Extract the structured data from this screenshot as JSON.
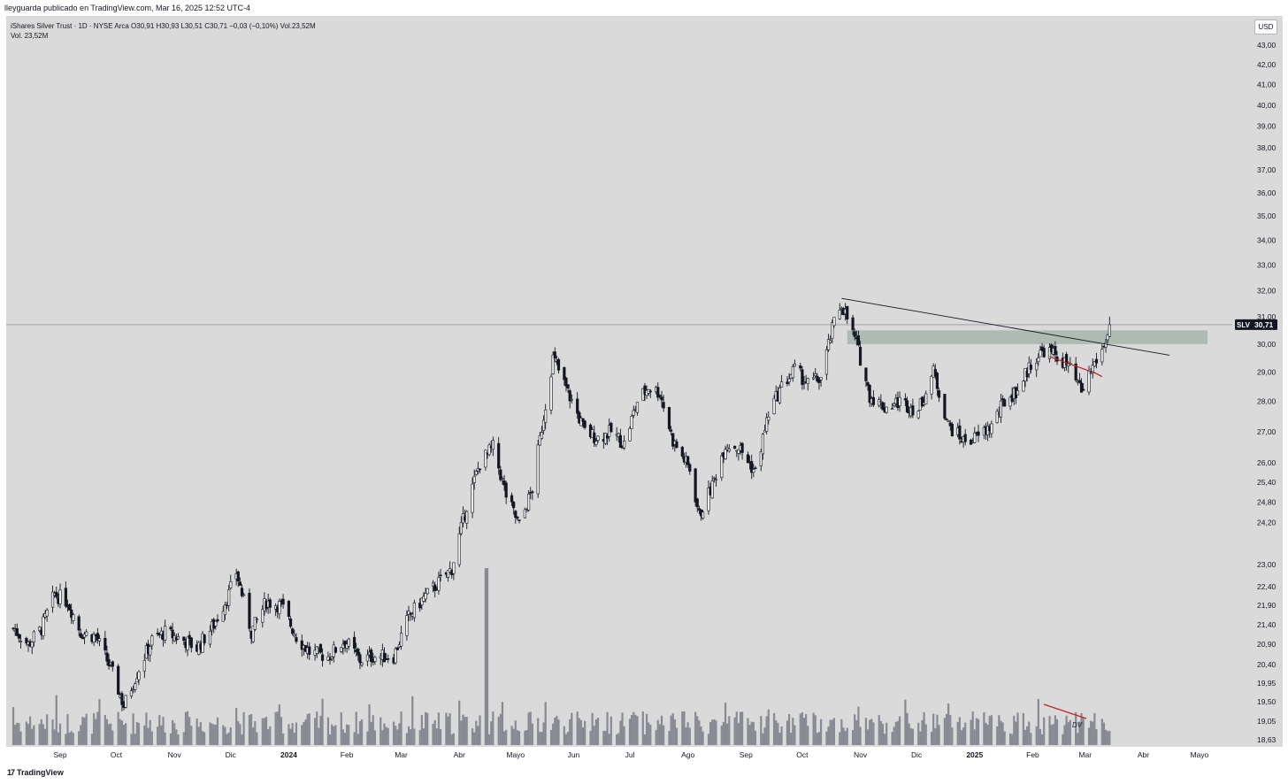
{
  "header": {
    "publisher_line": "lleyguarda publicado en TradingView.com, Mar 16, 2025 12:52 UTC-4"
  },
  "legend": {
    "symbol_line": "iShares Silver Trust · 1D · NYSE Arca  O30,91  H30,93  L30,51  C30,71  −0,03 (−0,10%)  Vol.23,52M",
    "volume_line": "Vol.  23,52M"
  },
  "currency_button": "USD",
  "footer": {
    "brand": "TradingView",
    "logo_glyph": "17"
  },
  "colors": {
    "background": "#dadada",
    "candle_up_fill": "#f0f0f0",
    "candle_down_fill": "#131722",
    "volume": "#878a93",
    "zone": "#a4b5ab",
    "trendline": "#131722",
    "red_marks": "#c2202b",
    "price_label_bg": "#131722"
  },
  "price_label": {
    "symbol": "SLV",
    "value": "30,71"
  },
  "chart_data": {
    "type": "candlestick",
    "title": "",
    "y_scale": "log",
    "ylim": [
      18.63,
      44.0
    ],
    "y_ticks": [
      "43,00",
      "42,00",
      "41,00",
      "40,00",
      "39,00",
      "38,00",
      "37,00",
      "36,00",
      "35,00",
      "34,00",
      "33,00",
      "32,00",
      "31,00",
      "30,00",
      "29,00",
      "28,00",
      "27,00",
      "26,00",
      "25,40",
      "24,80",
      "24,20",
      "23,00",
      "22,40",
      "21,90",
      "21,40",
      "20,90",
      "20,40",
      "19,95",
      "19,50",
      "19,05",
      "18,63"
    ],
    "x_ticks": [
      {
        "label": "Sep",
        "date": "2023-09-01"
      },
      {
        "label": "Oct",
        "date": "2023-10-01"
      },
      {
        "label": "Nov",
        "date": "2023-11-01"
      },
      {
        "label": "Dic",
        "date": "2023-12-01"
      },
      {
        "label": "2024",
        "date": "2024-01-01",
        "bold": true
      },
      {
        "label": "Feb",
        "date": "2024-02-01"
      },
      {
        "label": "Mar",
        "date": "2024-03-01"
      },
      {
        "label": "Abr",
        "date": "2024-04-01"
      },
      {
        "label": "Mayo",
        "date": "2024-05-01"
      },
      {
        "label": "Jun",
        "date": "2024-06-01"
      },
      {
        "label": "Jul",
        "date": "2024-07-01"
      },
      {
        "label": "Ago",
        "date": "2024-08-01"
      },
      {
        "label": "Sep",
        "date": "2024-09-01"
      },
      {
        "label": "Oct",
        "date": "2024-10-01"
      },
      {
        "label": "Nov",
        "date": "2024-11-01"
      },
      {
        "label": "Dic",
        "date": "2024-12-01"
      },
      {
        "label": "2025",
        "date": "2025-01-01",
        "bold": true
      },
      {
        "label": "Feb",
        "date": "2025-02-01"
      },
      {
        "label": "Mar",
        "date": "2025-03-01"
      },
      {
        "label": "Abr",
        "date": "2025-04-01"
      },
      {
        "label": "Mayo",
        "date": "2025-05-01"
      }
    ],
    "x_range": [
      "2023-08-07",
      "2025-05-28"
    ],
    "closes_anchor": [
      [
        "2023-08-07",
        21.3
      ],
      [
        "2023-08-15",
        20.9
      ],
      [
        "2023-08-22",
        21.3
      ],
      [
        "2023-08-29",
        22.2
      ],
      [
        "2023-09-05",
        22.0
      ],
      [
        "2023-09-12",
        21.2
      ],
      [
        "2023-09-20",
        21.1
      ],
      [
        "2023-09-28",
        20.3
      ],
      [
        "2023-10-05",
        19.4
      ],
      [
        "2023-10-13",
        20.3
      ],
      [
        "2023-10-20",
        21.0
      ],
      [
        "2023-10-27",
        21.2
      ],
      [
        "2023-11-06",
        21.0
      ],
      [
        "2023-11-13",
        20.8
      ],
      [
        "2023-11-22",
        21.4
      ],
      [
        "2023-11-30",
        22.2
      ],
      [
        "2023-12-04",
        22.8
      ],
      [
        "2023-12-12",
        21.2
      ],
      [
        "2023-12-20",
        22.0
      ],
      [
        "2023-12-28",
        21.9
      ],
      [
        "2024-01-05",
        21.1
      ],
      [
        "2024-01-12",
        20.7
      ],
      [
        "2024-01-22",
        20.6
      ],
      [
        "2024-01-31",
        21.0
      ],
      [
        "2024-02-08",
        20.5
      ],
      [
        "2024-02-15",
        20.6
      ],
      [
        "2024-02-26",
        20.6
      ],
      [
        "2024-03-05",
        21.6
      ],
      [
        "2024-03-13",
        22.1
      ],
      [
        "2024-03-21",
        22.5
      ],
      [
        "2024-03-28",
        22.9
      ],
      [
        "2024-04-05",
        24.7
      ],
      [
        "2024-04-12",
        26.0
      ],
      [
        "2024-04-19",
        26.5
      ],
      [
        "2024-04-26",
        25.0
      ],
      [
        "2024-05-03",
        24.1
      ],
      [
        "2024-05-10",
        25.2
      ],
      [
        "2024-05-17",
        27.9
      ],
      [
        "2024-05-21",
        29.5
      ],
      [
        "2024-05-29",
        28.3
      ],
      [
        "2024-06-07",
        27.0
      ],
      [
        "2024-06-14",
        26.8
      ],
      [
        "2024-06-21",
        27.0
      ],
      [
        "2024-06-28",
        26.6
      ],
      [
        "2024-07-05",
        28.0
      ],
      [
        "2024-07-11",
        28.5
      ],
      [
        "2024-07-17",
        28.3
      ],
      [
        "2024-07-24",
        26.7
      ],
      [
        "2024-08-02",
        25.8
      ],
      [
        "2024-08-07",
        24.4
      ],
      [
        "2024-08-14",
        25.3
      ],
      [
        "2024-08-21",
        26.6
      ],
      [
        "2024-08-28",
        26.5
      ],
      [
        "2024-09-06",
        25.7
      ],
      [
        "2024-09-13",
        27.6
      ],
      [
        "2024-09-20",
        28.5
      ],
      [
        "2024-09-27",
        29.1
      ],
      [
        "2024-10-04",
        28.6
      ],
      [
        "2024-10-11",
        28.8
      ],
      [
        "2024-10-18",
        30.8
      ],
      [
        "2024-10-22",
        31.5
      ],
      [
        "2024-10-30",
        30.0
      ],
      [
        "2024-11-06",
        28.2
      ],
      [
        "2024-11-14",
        27.8
      ],
      [
        "2024-11-22",
        28.0
      ],
      [
        "2024-12-02",
        27.7
      ],
      [
        "2024-12-10",
        29.0
      ],
      [
        "2024-12-18",
        27.2
      ],
      [
        "2024-12-26",
        26.7
      ],
      [
        "2025-01-02",
        26.8
      ],
      [
        "2025-01-10",
        27.2
      ],
      [
        "2025-01-17",
        28.0
      ],
      [
        "2025-01-24",
        28.4
      ],
      [
        "2025-01-31",
        29.3
      ],
      [
        "2025-02-07",
        29.8
      ],
      [
        "2025-02-13",
        29.6
      ],
      [
        "2025-02-20",
        29.2
      ],
      [
        "2025-02-27",
        28.3
      ],
      [
        "2025-03-05",
        29.2
      ],
      [
        "2025-03-11",
        29.9
      ],
      [
        "2025-03-14",
        30.7
      ]
    ],
    "last_price": 30.71,
    "resistance_zone": [
      30.0,
      30.5
    ],
    "trendline": [
      [
        "2024-10-22",
        31.7
      ],
      [
        "2025-04-15",
        29.6
      ]
    ],
    "current_price_line": 30.71,
    "volume_series": "Vol.",
    "volume_peak_date": "2024-04-15",
    "annotation_text": "DV"
  }
}
